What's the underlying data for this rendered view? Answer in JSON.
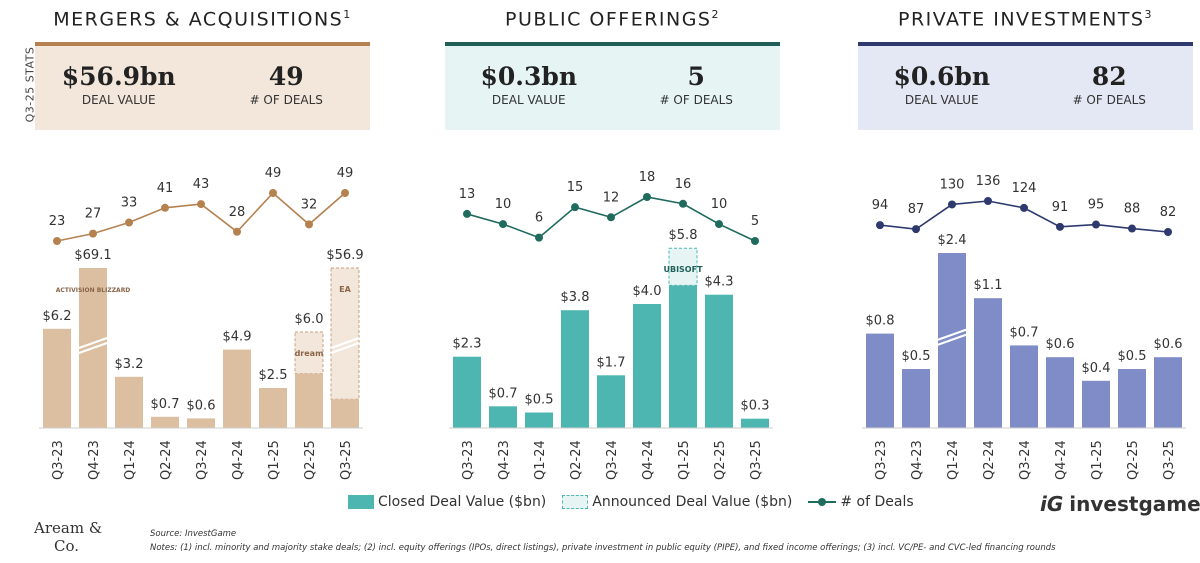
{
  "side_label": "Q3-25 STATS",
  "panels": [
    {
      "title": "MERGERS & ACQUISITIONS",
      "sup": "1",
      "value": "$56.9bn",
      "value_label": "DEAL VALUE",
      "deals": "49",
      "deals_label": "# OF DEALS"
    },
    {
      "title": "PUBLIC OFFERINGS",
      "sup": "2",
      "value": "$0.3bn",
      "value_label": "DEAL VALUE",
      "deals": "5",
      "deals_label": "# OF DEALS"
    },
    {
      "title": "PRIVATE INVESTMENTS",
      "sup": "3",
      "value": "$0.6bn",
      "value_label": "DEAL VALUE",
      "deals": "82",
      "deals_label": "# OF DEALS"
    }
  ],
  "colors": {
    "ma": {
      "bar": "#dcbfa0",
      "line": "#b5824f",
      "bg": "#f3e6db",
      "top": "#b5824f",
      "ann": "#f3e6db",
      "annBorder": "#c9a27f"
    },
    "po": {
      "bar": "#4db6b0",
      "line": "#1f6b5e",
      "bg": "#e6f5f4",
      "top": "#1f5f58",
      "ann": "#e6f5f4",
      "annBorder": "#4db6b0"
    },
    "pi": {
      "bar": "#7f8cc8",
      "line": "#2e3a6e",
      "bg": "#e4e7f4",
      "top": "#2e3a6e",
      "ann": "#e4e7f4",
      "annBorder": "#7f8cc8"
    }
  },
  "chart_data": [
    {
      "type": "bar",
      "key": "ma",
      "title": "Mergers & Acquisitions",
      "categories": [
        "Q3-23",
        "Q4-23",
        "Q1-24",
        "Q2-24",
        "Q3-24",
        "Q4-24",
        "Q1-25",
        "Q2-25",
        "Q3-25"
      ],
      "closed": [
        6.2,
        69.1,
        3.2,
        0.7,
        0.6,
        4.9,
        2.5,
        3.4,
        1.8
      ],
      "total": [
        6.2,
        69.1,
        3.2,
        0.7,
        0.6,
        4.9,
        2.5,
        6.0,
        56.9
      ],
      "value_labels": [
        "$6.2",
        "$69.1",
        "$3.2",
        "$0.7",
        "$0.6",
        "$4.9",
        "$2.5",
        "$6.0",
        "$56.9"
      ],
      "broken_axis": [
        false,
        true,
        false,
        false,
        false,
        false,
        false,
        false,
        true
      ],
      "logos": [
        null,
        "ACTIVISION BLIZZARD",
        null,
        null,
        null,
        null,
        null,
        "dream",
        "EA"
      ],
      "deals": [
        23,
        27,
        33,
        41,
        43,
        28,
        49,
        32,
        49
      ]
    },
    {
      "type": "bar",
      "key": "po",
      "title": "Public Offerings",
      "categories": [
        "Q3-23",
        "Q4-23",
        "Q1-24",
        "Q2-24",
        "Q3-24",
        "Q4-24",
        "Q1-25",
        "Q2-25",
        "Q3-25"
      ],
      "closed": [
        2.3,
        0.7,
        0.5,
        3.8,
        1.7,
        4.0,
        4.6,
        4.3,
        0.3
      ],
      "total": [
        2.3,
        0.7,
        0.5,
        3.8,
        1.7,
        4.0,
        5.8,
        4.3,
        0.3
      ],
      "value_labels": [
        "$2.3",
        "$0.7",
        "$0.5",
        "$3.8",
        "$1.7",
        "$4.0",
        "$5.8",
        "$4.3",
        "$0.3"
      ],
      "broken_axis": [
        false,
        false,
        false,
        false,
        false,
        false,
        false,
        false,
        false
      ],
      "logos": [
        null,
        null,
        null,
        null,
        null,
        null,
        "UBISOFT",
        null,
        null
      ],
      "deals": [
        13,
        10,
        6,
        15,
        12,
        18,
        16,
        10,
        5
      ]
    },
    {
      "type": "bar",
      "key": "pi",
      "title": "Private Investments",
      "categories": [
        "Q3-23",
        "Q4-23",
        "Q1-24",
        "Q2-24",
        "Q3-24",
        "Q4-24",
        "Q1-25",
        "Q2-25",
        "Q3-25"
      ],
      "closed": [
        0.8,
        0.5,
        2.4,
        1.1,
        0.7,
        0.6,
        0.4,
        0.5,
        0.6
      ],
      "total": [
        0.8,
        0.5,
        2.4,
        1.1,
        0.7,
        0.6,
        0.4,
        0.5,
        0.6
      ],
      "value_labels": [
        "$0.8",
        "$0.5",
        "$2.4",
        "$1.1",
        "$0.7",
        "$0.6",
        "$0.4",
        "$0.5",
        "$0.6"
      ],
      "broken_axis": [
        false,
        false,
        true,
        false,
        false,
        false,
        false,
        false,
        false
      ],
      "logos": [
        null,
        null,
        null,
        null,
        null,
        null,
        null,
        null,
        null
      ],
      "deals": [
        94,
        87,
        130,
        136,
        124,
        91,
        95,
        88,
        82
      ]
    }
  ],
  "legend": {
    "closed": "Closed Deal Value ($bn)",
    "announced": "Announced Deal Value ($bn)",
    "deals": "# of Deals"
  },
  "brand": "investgame",
  "footer": {
    "logo_line1": "Aream &",
    "logo_line2": "Co.",
    "source": "Source: InvestGame",
    "notes": "Notes: (1) incl. minority and majority stake deals; (2) incl. equity offerings (IPOs, direct listings), private investment in public equity (PIPE), and fixed income offerings; (3) incl. VC/PE- and CVC-led financing rounds"
  }
}
